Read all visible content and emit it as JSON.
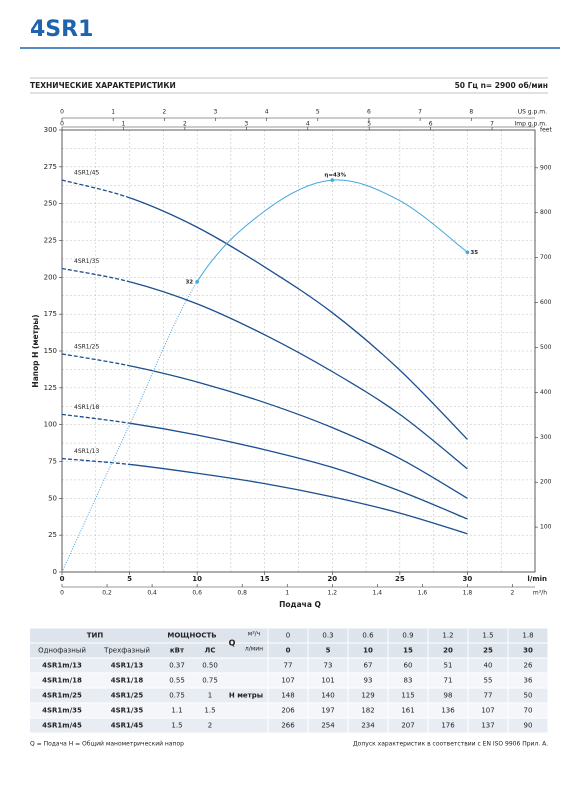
{
  "header": {
    "title": "4SR1"
  },
  "section": {
    "title": "ТЕХНИЧЕСКИЕ ХАРАКТЕРИСТИКИ",
    "speed": "50 Гц   n= 2900 об/мин"
  },
  "chart_data": {
    "type": "line",
    "ylabel": "Напор H (метры)",
    "xlabel": "Подача Q",
    "x_unit": "l/min",
    "x": [
      0,
      5,
      10,
      15,
      20,
      25,
      30
    ],
    "xlim": [
      0,
      35
    ],
    "xticks": [
      0,
      5,
      10,
      15,
      20,
      25,
      30
    ],
    "ylim": [
      0,
      300
    ],
    "yticks": [
      0,
      25,
      50,
      75,
      100,
      125,
      150,
      175,
      200,
      225,
      250,
      275,
      300
    ],
    "y2_label": "feet",
    "y2lim": [
      0,
      984.25
    ],
    "y2ticks": [
      100,
      200,
      300,
      400,
      500,
      600,
      700,
      800,
      900
    ],
    "grid": true,
    "top_axes": [
      {
        "label": "US g.p.m.",
        "lim": [
          0,
          9.246
        ],
        "ticks": [
          0,
          1,
          2,
          3,
          4,
          5,
          6,
          7,
          8
        ]
      },
      {
        "label": "Imp g.p.m.",
        "lim": [
          0,
          7.699
        ],
        "ticks": [
          0,
          1,
          2,
          3,
          4,
          5,
          6,
          7
        ]
      }
    ],
    "bottom_axis2": {
      "label": "m³/h",
      "lim": [
        0,
        2.1
      ],
      "ticks": [
        0,
        {
          "value": 0.2,
          "label": "0,2"
        },
        {
          "value": 0.4,
          "label": "0,4"
        },
        {
          "value": 0.6,
          "label": "0,6"
        },
        {
          "value": 0.8,
          "label": "0,8"
        },
        1,
        {
          "value": 1.2,
          "label": "1,2"
        },
        {
          "value": 1.4,
          "label": "1,4"
        },
        {
          "value": 1.6,
          "label": "1,6"
        },
        {
          "value": 1.8,
          "label": "1,8"
        },
        2
      ]
    },
    "series": [
      {
        "name": "4SR1/13",
        "color": "#1b4f8f",
        "values": [
          77,
          73,
          67,
          60,
          51,
          40,
          26
        ]
      },
      {
        "name": "4SR1/18",
        "color": "#1b4f8f",
        "values": [
          107,
          101,
          93,
          83,
          71,
          55,
          36
        ]
      },
      {
        "name": "4SR1/25",
        "color": "#1b4f8f",
        "values": [
          148,
          140,
          129,
          115,
          98,
          77,
          50
        ]
      },
      {
        "name": "4SR1/35",
        "color": "#1b4f8f",
        "values": [
          206,
          197,
          182,
          161,
          136,
          107,
          70
        ]
      },
      {
        "name": "4SR1/45",
        "color": "#1b4f8f",
        "values": [
          266,
          254,
          234,
          207,
          176,
          137,
          90
        ]
      }
    ],
    "efficiency": {
      "color": "#45a6dc",
      "x": [
        0,
        5,
        10,
        15,
        20,
        25,
        30
      ],
      "values": [
        0,
        100,
        197,
        245,
        266,
        252,
        217
      ]
    },
    "annotations": [
      {
        "text": "32",
        "x": 10,
        "y": 197
      },
      {
        "text": "η=43%",
        "x": 20,
        "y": 266
      },
      {
        "text": "35",
        "x": 30,
        "y": 217
      }
    ]
  },
  "table": {
    "head": {
      "type": "ТИП",
      "power": "МОЩНОСТЬ",
      "q": "Q",
      "m3h_unit": "м³/ч",
      "lmin_unit": "л/мин",
      "single": "Однофазный",
      "three": "Трехфазный",
      "kw": "кВт",
      "hp": "ЛС",
      "h": "H метры"
    },
    "q_m3h": [
      "0",
      "0.3",
      "0.6",
      "0.9",
      "1.2",
      "1.5",
      "1.8"
    ],
    "q_lmin": [
      0,
      5,
      10,
      15,
      20,
      25,
      30
    ],
    "rows": [
      [
        "4SR1m/13",
        "4SR1/13",
        "0.37",
        "0.50",
        77,
        73,
        67,
        60,
        51,
        40,
        26
      ],
      [
        "4SR1m/18",
        "4SR1/18",
        "0.55",
        "0.75",
        107,
        101,
        93,
        83,
        71,
        55,
        36
      ],
      [
        "4SR1m/25",
        "4SR1/25",
        "0.75",
        "1",
        148,
        140,
        129,
        115,
        98,
        77,
        50
      ],
      [
        "4SR1m/35",
        "4SR1/35",
        "1.1",
        "1.5",
        206,
        197,
        182,
        161,
        136,
        107,
        70
      ],
      [
        "4SR1m/45",
        "4SR1/45",
        "1.5",
        "2",
        266,
        254,
        234,
        207,
        176,
        137,
        90
      ]
    ]
  },
  "notes": {
    "left": "Q = Подача   H = Общий манометрический напор",
    "right": "Допуск характеристик в соответствии с EN ISO 9906 Прил. A."
  }
}
